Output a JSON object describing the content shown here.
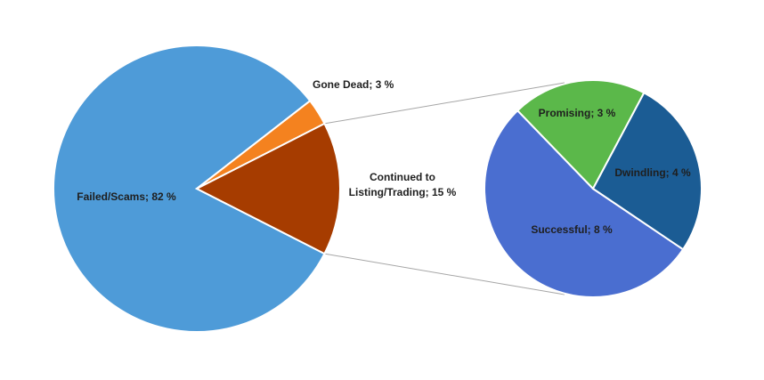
{
  "chart_data": {
    "type": "pie",
    "subtype": "pie-of-pie",
    "main": {
      "slices": [
        {
          "name": "Failed/Scams",
          "value": 82,
          "label": "Failed/Scams; 82 %",
          "color": "#4e9bd8"
        },
        {
          "name": "Gone Dead",
          "value": 3,
          "label": "Gone Dead; 3 %",
          "color": "#f4821f"
        },
        {
          "name": "Continued to Listing/Trading",
          "value": 15,
          "label_lines": [
            "Continued to",
            "Listing/Trading; 15 %"
          ],
          "color": "#a63c00"
        }
      ]
    },
    "secondary": {
      "breakdown_of": "Continued to Listing/Trading",
      "slices": [
        {
          "name": "Successful",
          "value": 8,
          "label": "Successful; 8 %",
          "color": "#4a6ed0"
        },
        {
          "name": "Promising",
          "value": 3,
          "label": "Promising; 3 %",
          "color": "#5bb84a"
        },
        {
          "name": "Dwindling",
          "value": 4,
          "label": "Dwindling; 4 %",
          "color": "#1b5c94"
        }
      ]
    },
    "legend": "none"
  }
}
